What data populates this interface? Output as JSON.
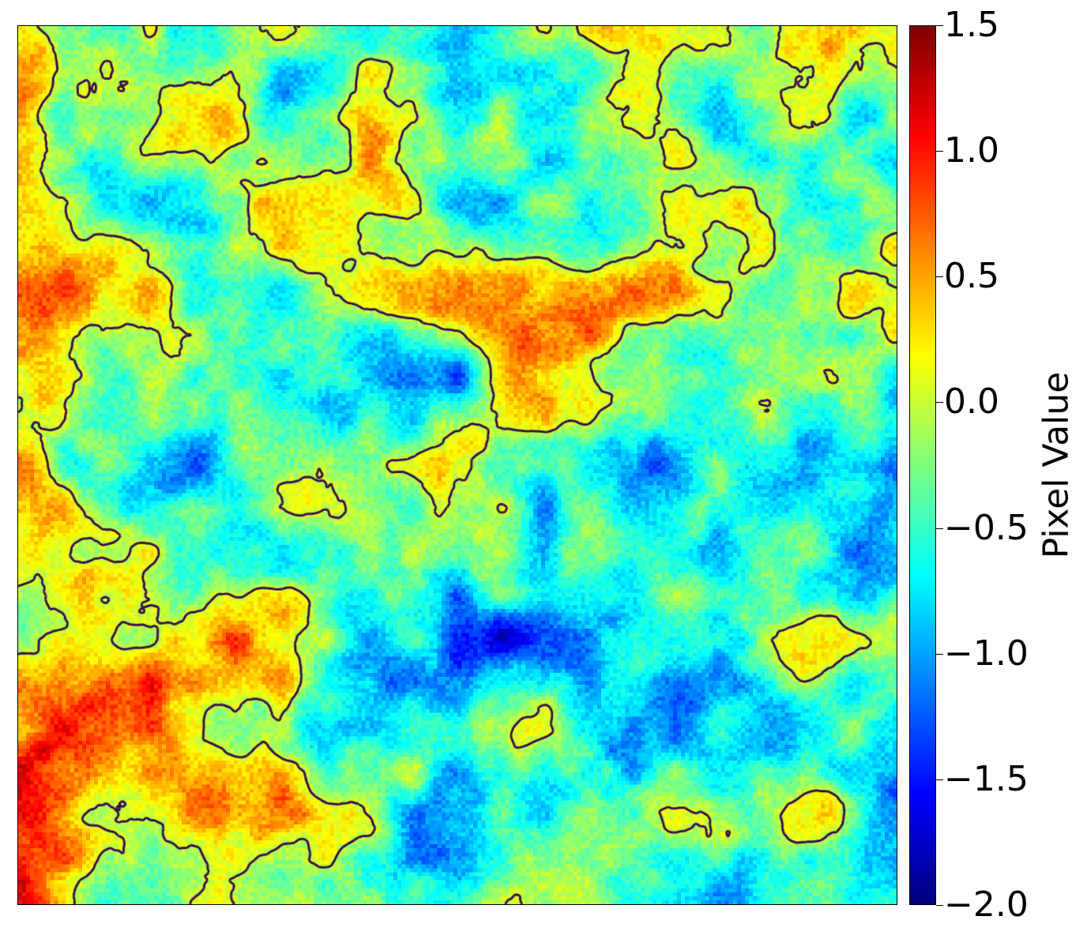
{
  "chart_data": {
    "type": "heatmap",
    "title": "",
    "xlabel": "",
    "ylabel": "",
    "grid": false,
    "axes_ticks_shown": false,
    "colormap": "jet",
    "colorbar": {
      "label": "Pixel Value",
      "range": [
        -2.0,
        1.5
      ],
      "ticks": [
        1.5,
        1.0,
        0.5,
        0.0,
        -0.5,
        -1.0,
        -1.5,
        -2.0
      ],
      "tick_labels": [
        "1.5",
        "1.0",
        "0.5",
        "0.0",
        "−0.5",
        "−1.0",
        "−1.5",
        "−2.0"
      ],
      "position": "right"
    },
    "contour": {
      "level": 0.0,
      "color": "#3b0f4a"
    },
    "field_description": "Random Gaussian-correlated noise field on a square grid, values spanning about -2.0 to 1.5; warm blobs above 0 outlined by a dark contour at level 0."
  },
  "colors": {
    "contour": "#3b0f4a",
    "frame": "#000000"
  }
}
